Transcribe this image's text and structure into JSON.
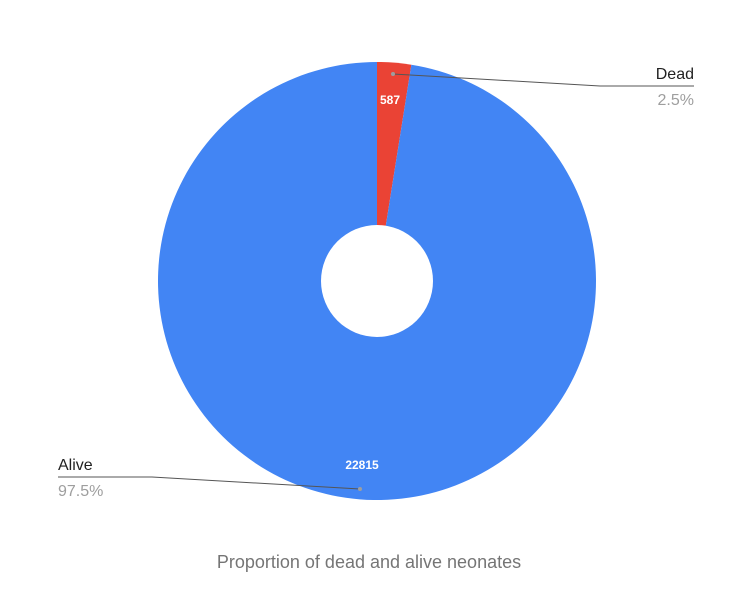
{
  "chart_data": {
    "type": "pie",
    "title": "Proportion of dead and alive neonates",
    "donut": true,
    "slices": [
      {
        "label": "Dead",
        "value": 587,
        "percent_label": "2.5%",
        "color": "#ea4335"
      },
      {
        "label": "Alive",
        "value": 22815,
        "percent_label": "97.5%",
        "color": "#4285f4"
      }
    ],
    "value_labels": [
      "587",
      "22815"
    ],
    "legend": "callouts"
  }
}
